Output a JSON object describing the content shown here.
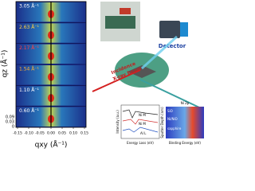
{
  "left_panel": {
    "y_axis_label": "qz (Å⁻¹)",
    "x_axis_label": "qxy (Å⁻¹)",
    "strip_labels": [
      "3.05 Å⁻¹",
      "2.63 Å⁻¹",
      "2.17 Å⁻¹",
      "1.54 Å⁻¹",
      "1.10 Å⁻¹",
      "0.60 Å⁻¹"
    ],
    "y_tick_labels": [
      "0.09",
      "0.03",
      "0"
    ],
    "x_tick_labels": [
      "-0.15",
      "-0.10",
      "-0.05",
      "0.00",
      "0.05",
      "0.10",
      "0.15"
    ]
  },
  "setup": {
    "detector": "Detector",
    "beam": [
      "Incidence",
      "X-ray beam"
    ]
  },
  "spectra": {
    "x_label": "Energy Loss (eV)",
    "y_label": "Intensity (a.u.)",
    "traces": [
      "Ni M",
      "Ni M",
      "Al L"
    ]
  },
  "depth_map": {
    "title": "Ni 2p",
    "x_label": "Binding Energy (eV)",
    "y_label": "Sputter Depth (nm)",
    "layers": [
      "SiO",
      "Ni/NiO",
      "sapphire"
    ]
  }
}
